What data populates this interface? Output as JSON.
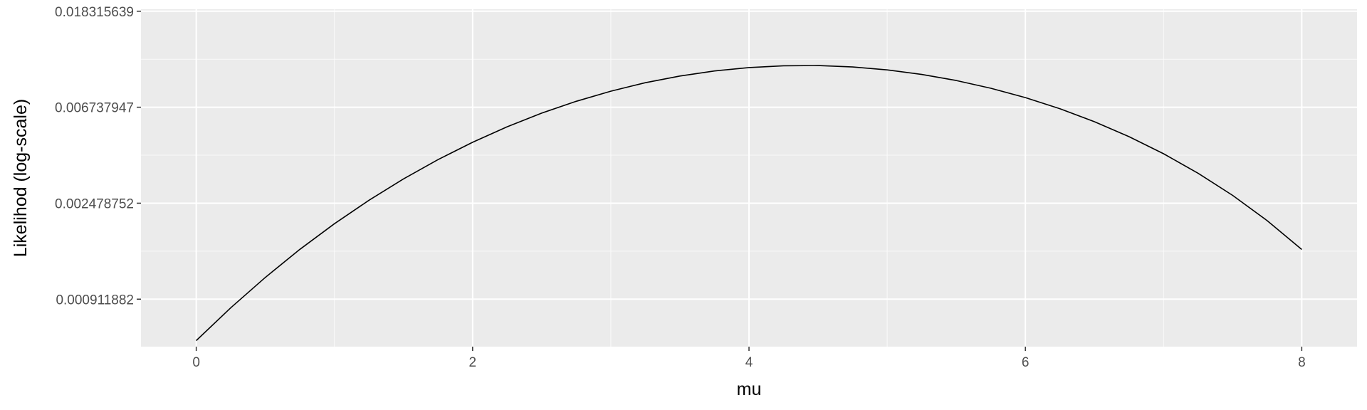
{
  "chart_data": {
    "type": "line",
    "title": "",
    "xlabel": "mu",
    "ylabel": "Likelihod (log-scale)",
    "y_scale": "log",
    "xlim": [
      -0.4,
      8.4
    ],
    "ylim": [
      0.000556,
      0.0187
    ],
    "x_ticks": [
      {
        "value": 0,
        "label": "0"
      },
      {
        "value": 2,
        "label": "2"
      },
      {
        "value": 4,
        "label": "4"
      },
      {
        "value": 6,
        "label": "6"
      },
      {
        "value": 8,
        "label": "8"
      }
    ],
    "x_minor_ticks": [
      1,
      3,
      5,
      7
    ],
    "y_ticks": [
      {
        "value": 0.000911882,
        "label": "0.000911882"
      },
      {
        "value": 0.002478752,
        "label": "0.002478752"
      },
      {
        "value": 0.006737947,
        "label": "0.006737947"
      },
      {
        "value": 0.018315639,
        "label": "0.018315639"
      }
    ],
    "y_minor_ticks": [
      0.001503,
      0.004087,
      0.01111
    ],
    "grid": true,
    "series": [
      {
        "color": "#000000",
        "x": [
          0,
          0.25,
          0.5,
          0.75,
          1,
          1.25,
          1.5,
          1.75,
          2,
          2.25,
          2.5,
          2.75,
          3,
          3.25,
          3.5,
          3.75,
          4,
          4.25,
          4.5,
          4.75,
          5,
          5.25,
          5.5,
          5.75,
          6,
          6.25,
          6.5,
          6.75,
          7,
          7.25,
          7.5,
          7.75,
          8
        ],
        "y": [
          0.000592,
          0.000834,
          0.001144,
          0.001532,
          0.002001,
          0.002556,
          0.003193,
          0.003905,
          0.004677,
          0.005495,
          0.006336,
          0.00717,
          0.007966,
          0.008697,
          0.009328,
          0.009832,
          0.010187,
          0.010379,
          0.0104,
          0.010251,
          0.009939,
          0.009482,
          0.0089,
          0.008212,
          0.007448,
          0.006634,
          0.005795,
          0.004958,
          0.004149,
          0.003386,
          0.002688,
          0.002066,
          0.00153
        ]
      }
    ]
  }
}
